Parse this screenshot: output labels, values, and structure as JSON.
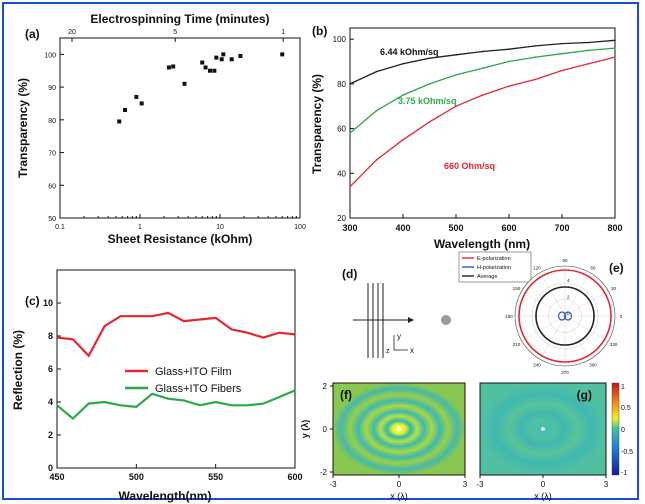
{
  "colors": {
    "frame": "#1a4fd0",
    "red": "#e8262f",
    "green": "#2aa84a",
    "black": "#222222",
    "blue": "#3355cc",
    "panel_bg": "#ffffff"
  },
  "chart_data": [
    {
      "panel": "(a)",
      "type": "scatter",
      "top_axis_label": "Electrospinning Time (minutes)",
      "top_tick_labels": [
        "20",
        "5",
        "1"
      ],
      "xlabel": "Sheet Resistance (kOhm)",
      "ylabel": "Transparency (%)",
      "x_scale": "log",
      "xlim": [
        0.1,
        100
      ],
      "ylim": [
        50,
        105
      ],
      "x_tick_labels": [
        "0.1",
        "1",
        "10",
        "100"
      ],
      "y_tick_labels": [
        "50",
        "60",
        "70",
        "80",
        "90",
        "100"
      ],
      "points": [
        [
          0.55,
          79.5
        ],
        [
          0.65,
          83
        ],
        [
          0.9,
          87
        ],
        [
          1.05,
          85
        ],
        [
          2.3,
          96
        ],
        [
          2.6,
          96.3
        ],
        [
          3.6,
          91
        ],
        [
          6,
          97.5
        ],
        [
          6.6,
          96
        ],
        [
          7.5,
          95
        ],
        [
          8.5,
          95
        ],
        [
          9,
          99
        ],
        [
          10.5,
          98.5
        ],
        [
          11,
          100
        ],
        [
          14,
          98.5
        ],
        [
          18,
          99.5
        ],
        [
          60,
          100
        ]
      ]
    },
    {
      "panel": "(b)",
      "type": "line",
      "xlabel": "Wavelength (nm)",
      "ylabel": "Transparency (%)",
      "xlim": [
        300,
        800
      ],
      "ylim": [
        20,
        105
      ],
      "x_tick_labels": [
        "300",
        "400",
        "500",
        "600",
        "700",
        "800"
      ],
      "y_tick_labels": [
        "20",
        "40",
        "60",
        "80",
        "100"
      ],
      "annotations": [
        "6.44 kOhm/sq",
        "3.75 kOhm/sq",
        "660 Ohm/sq"
      ],
      "series": [
        {
          "color": "#222222",
          "x": [
            300,
            350,
            400,
            450,
            500,
            550,
            600,
            650,
            700,
            750,
            800
          ],
          "y": [
            80,
            85.5,
            89,
            91.5,
            93,
            94.5,
            95.5,
            97,
            98,
            98.5,
            99.5
          ]
        },
        {
          "color": "#2aa84a",
          "x": [
            300,
            350,
            400,
            450,
            500,
            550,
            600,
            650,
            700,
            750,
            800
          ],
          "y": [
            58,
            68,
            75,
            80,
            84,
            87,
            90,
            92,
            93.5,
            95,
            96
          ]
        },
        {
          "color": "#e8262f",
          "x": [
            300,
            350,
            400,
            450,
            500,
            550,
            600,
            650,
            700,
            750,
            800
          ],
          "y": [
            34,
            46,
            55,
            63,
            70,
            75,
            79,
            82,
            86,
            89,
            92
          ]
        }
      ]
    },
    {
      "panel": "(c)",
      "type": "line",
      "xlabel": "Wavelength(nm)",
      "ylabel": "Reflection (%)",
      "xlim": [
        450,
        600
      ],
      "ylim": [
        0,
        12
      ],
      "x_tick_labels": [
        "450",
        "500",
        "550",
        "600"
      ],
      "y_tick_labels": [
        "0",
        "2",
        "4",
        "6",
        "8",
        "10"
      ],
      "series": [
        {
          "name": "Glass+ITO Film",
          "color": "#e8262f",
          "x": [
            450,
            460,
            470,
            480,
            490,
            500,
            510,
            520,
            530,
            540,
            550,
            560,
            570,
            580,
            590,
            600
          ],
          "y": [
            7.9,
            7.8,
            6.8,
            8.6,
            9.2,
            9.2,
            9.2,
            9.4,
            8.9,
            9.0,
            9.1,
            8.4,
            8.2,
            7.9,
            8.2,
            8.1
          ]
        },
        {
          "name": "Glass+ITO Fibers",
          "color": "#2aa84a",
          "x": [
            450,
            460,
            470,
            480,
            490,
            500,
            510,
            520,
            530,
            540,
            550,
            560,
            570,
            580,
            590,
            600
          ],
          "y": [
            3.8,
            3.0,
            3.9,
            4.0,
            3.8,
            3.7,
            4.5,
            4.2,
            4.1,
            3.8,
            4.0,
            3.8,
            3.8,
            3.9,
            4.3,
            4.7
          ]
        }
      ]
    }
  ],
  "panel_d": {
    "label": "(d)",
    "axis_y": "y",
    "axis_x": "x",
    "axis_z": "z"
  },
  "panel_e": {
    "label": "(e)",
    "legend": [
      "E-polarization",
      "H-polarization",
      "Average"
    ],
    "angle_labels": [
      "90",
      "60",
      "30",
      "0",
      "330",
      "300",
      "270",
      "240",
      "210",
      "180",
      "150",
      "120"
    ],
    "radial_labels": [
      "0",
      "2",
      "4"
    ]
  },
  "panel_f": {
    "label": "(f)",
    "xlabel": "x (λ)",
    "ylabel": "y (λ)",
    "x_tick_labels": [
      "-3",
      "0",
      "3"
    ],
    "y_tick_labels": [
      "2",
      "0",
      "-2"
    ]
  },
  "panel_g": {
    "label": "(g)",
    "xlabel": "x (λ)",
    "x_tick_labels": [
      "-3",
      "0",
      "3"
    ]
  },
  "colorbar": {
    "tick_labels": [
      "1",
      "0.5",
      "0",
      "-0.5",
      "-1"
    ]
  }
}
